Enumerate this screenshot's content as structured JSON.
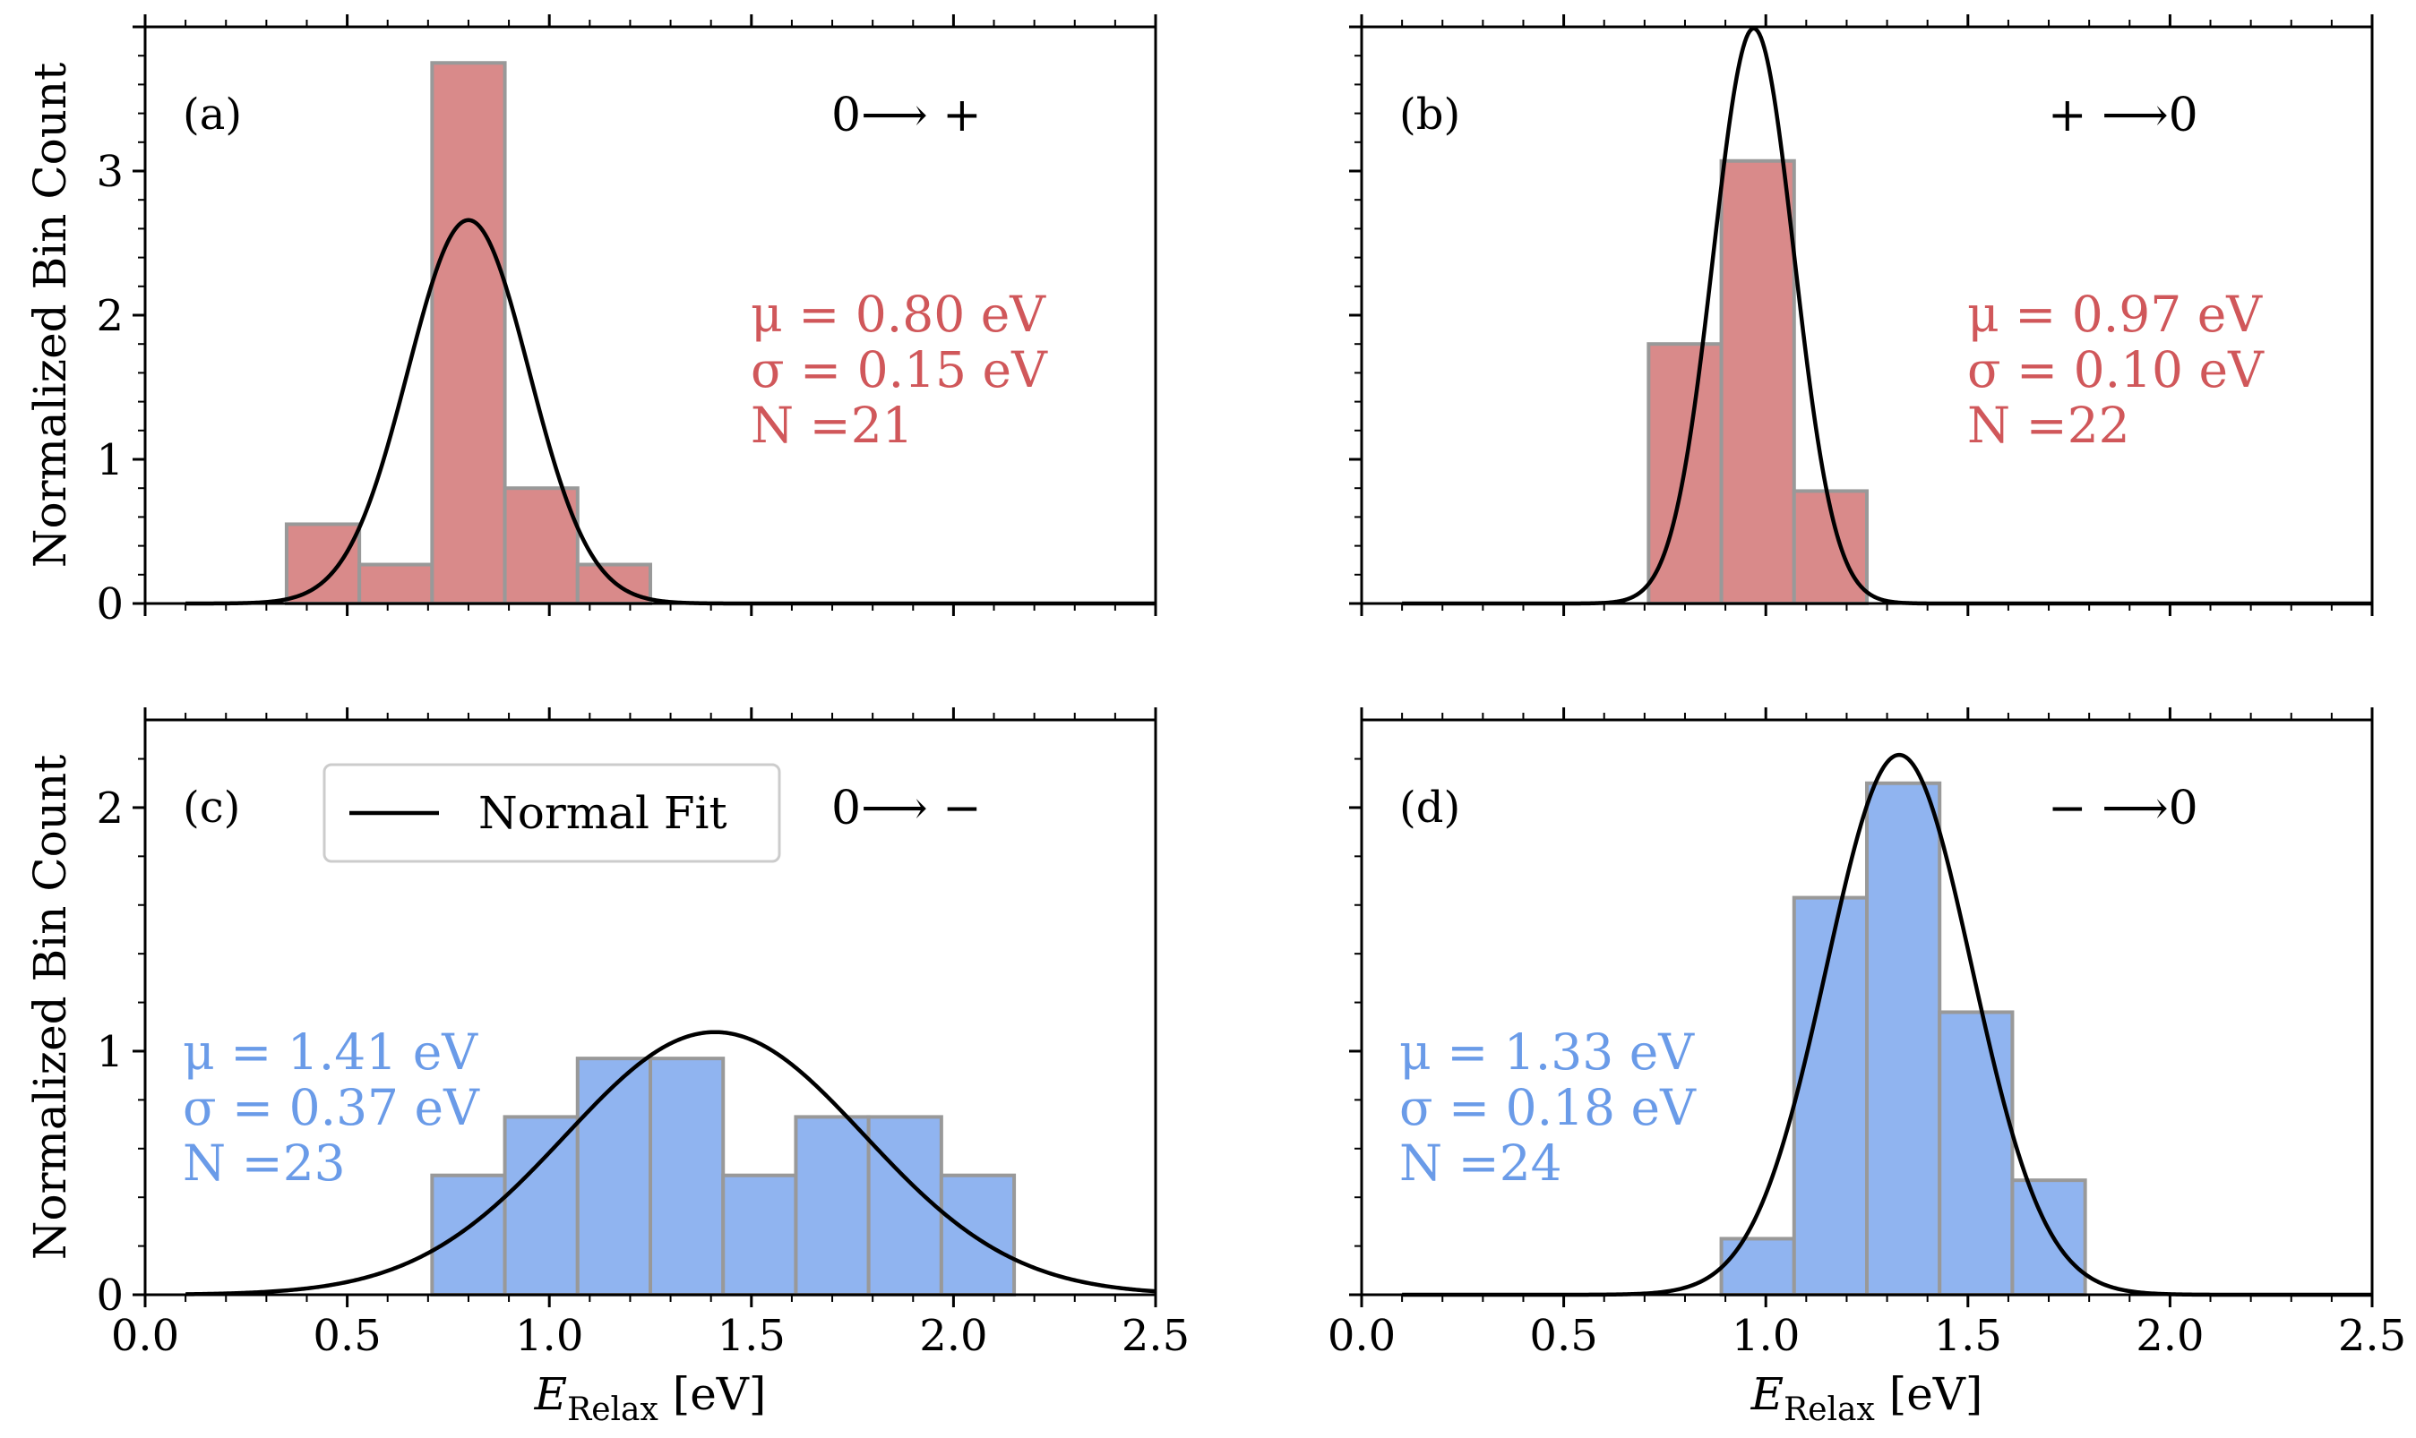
{
  "chart_data": [
    {
      "type": "bar",
      "panel_label": "(a)",
      "transition": "0⟶ +",
      "color": "#d98a8a",
      "edge_color": "#999999",
      "bin_edges": [
        0.35,
        0.53,
        0.71,
        0.89,
        1.07,
        1.25
      ],
      "values": [
        0.55,
        0.27,
        3.75,
        0.8,
        0.27
      ],
      "fit": {
        "mu": 0.8,
        "sigma": 0.15
      },
      "stats": [
        "μ = 0.80 eV",
        "σ = 0.15 eV",
        "N =21"
      ],
      "xlim": [
        0,
        2.5
      ],
      "ylim": [
        0,
        4.0
      ],
      "yticks": [
        0,
        1,
        2,
        3
      ],
      "ylabel": "Normalized Bin Count",
      "xlabel": ""
    },
    {
      "type": "bar",
      "panel_label": "(b)",
      "transition": "+ ⟶0",
      "color": "#d98a8a",
      "edge_color": "#999999",
      "bin_edges": [
        0.71,
        0.89,
        1.07,
        1.25
      ],
      "values": [
        1.8,
        3.07,
        0.78
      ],
      "fit": {
        "mu": 0.97,
        "sigma": 0.1
      },
      "stats": [
        "μ = 0.97 eV",
        "σ = 0.10 eV",
        "N =22"
      ],
      "xlim": [
        0,
        2.5
      ],
      "ylim": [
        0,
        4.0
      ],
      "yticks": [],
      "ylabel": "",
      "xlabel": ""
    },
    {
      "type": "bar",
      "panel_label": "(c)",
      "transition": "0⟶ −",
      "color": "#90b4f0",
      "edge_color": "#999999",
      "bin_edges": [
        0.71,
        0.89,
        1.07,
        1.25,
        1.43,
        1.61,
        1.79,
        1.97,
        2.15
      ],
      "values": [
        0.49,
        0.73,
        0.97,
        0.97,
        0.49,
        0.73,
        0.73,
        0.49
      ],
      "fit": {
        "mu": 1.41,
        "sigma": 0.37
      },
      "stats": [
        "μ = 1.41 eV",
        "σ = 0.37 eV",
        "N =23"
      ],
      "xlim": [
        0,
        2.5
      ],
      "ylim": [
        0,
        2.36
      ],
      "yticks": [
        0,
        1,
        2
      ],
      "xticks": [
        "0.0",
        "0.5",
        "1.0",
        "1.5",
        "2.0",
        "2.5"
      ],
      "ylabel": "Normalized Bin Count",
      "xlabel": "E",
      "xlabel_sub": "Relax",
      "xlabel_unit": " [eV]",
      "legend": {
        "label": "Normal Fit",
        "position": "upper-center"
      }
    },
    {
      "type": "bar",
      "panel_label": "(d)",
      "transition": "− ⟶0",
      "color": "#90b4f0",
      "edge_color": "#999999",
      "bin_edges": [
        0.89,
        1.07,
        1.25,
        1.43,
        1.61,
        1.79
      ],
      "values": [
        0.23,
        1.63,
        2.1,
        1.16,
        0.47
      ],
      "fit": {
        "mu": 1.33,
        "sigma": 0.18
      },
      "stats": [
        "μ = 1.33 eV",
        "σ = 0.18 eV",
        "N =24"
      ],
      "xlim": [
        0,
        2.5
      ],
      "ylim": [
        0,
        2.36
      ],
      "yticks": [],
      "xticks": [
        "0.0",
        "0.5",
        "1.0",
        "1.5",
        "2.0",
        "2.5"
      ],
      "ylabel": "",
      "xlabel": "E",
      "xlabel_sub": "Relax",
      "xlabel_unit": " [eV]"
    }
  ]
}
